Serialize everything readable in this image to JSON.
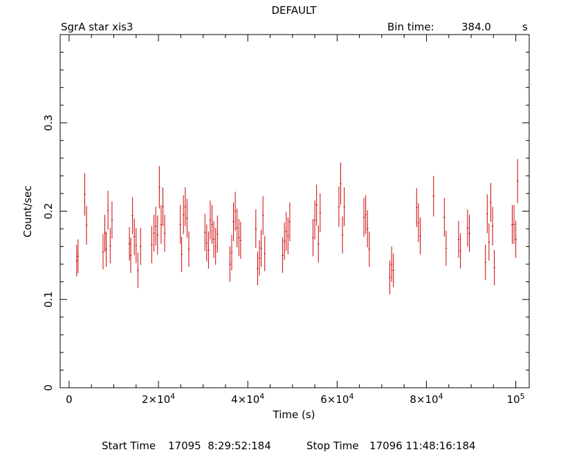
{
  "header": {
    "title": "DEFAULT",
    "source": "SgrA star xis3",
    "bin_label": "Bin time:",
    "bin_value": "384.0",
    "bin_unit": "s"
  },
  "footer": {
    "start_label": "Start Time",
    "start_value": "17095  8:29:52:184",
    "stop_label": "Stop Time",
    "stop_value": "17096 11:48:16:184"
  },
  "colors": {
    "data": "#cc0000",
    "axes": "#000000",
    "background": "#ffffff"
  },
  "chart_data": {
    "type": "scatter",
    "title": "DEFAULT",
    "xlabel": "Time (s)",
    "ylabel": "Count/sec",
    "xlim": [
      -2000,
      103000
    ],
    "ylim": [
      0,
      0.4
    ],
    "grid": false,
    "x_ticks": [
      {
        "value": 0,
        "mantissa": "0",
        "exp": ""
      },
      {
        "value": 20000,
        "mantissa": "2×10",
        "exp": "4"
      },
      {
        "value": 40000,
        "mantissa": "4×10",
        "exp": "4"
      },
      {
        "value": 60000,
        "mantissa": "6×10",
        "exp": "4"
      },
      {
        "value": 80000,
        "mantissa": "8×10",
        "exp": "4"
      },
      {
        "value": 100000,
        "mantissa": "10",
        "exp": "5"
      }
    ],
    "y_ticks": [
      {
        "value": 0,
        "label": "0"
      },
      {
        "value": 0.1,
        "label": "0.1"
      },
      {
        "value": 0.2,
        "label": "0.2"
      },
      {
        "value": 0.3,
        "label": "0.3"
      }
    ],
    "series": [
      {
        "x_error": 192,
        "points": [
          [
            1700,
            0.144,
            0.018
          ],
          [
            2000,
            0.149,
            0.019
          ],
          [
            3500,
            0.219,
            0.024
          ],
          [
            3900,
            0.184,
            0.022
          ],
          [
            7600,
            0.154,
            0.02
          ],
          [
            8000,
            0.175,
            0.021
          ],
          [
            8300,
            0.157,
            0.02
          ],
          [
            8700,
            0.201,
            0.022
          ],
          [
            9200,
            0.161,
            0.02
          ],
          [
            9600,
            0.19,
            0.021
          ],
          [
            13500,
            0.163,
            0.019
          ],
          [
            13800,
            0.15,
            0.02
          ],
          [
            14200,
            0.195,
            0.021
          ],
          [
            14600,
            0.171,
            0.021
          ],
          [
            15000,
            0.161,
            0.02
          ],
          [
            15400,
            0.133,
            0.02
          ],
          [
            16000,
            0.16,
            0.021
          ],
          [
            18500,
            0.162,
            0.021
          ],
          [
            19000,
            0.175,
            0.021
          ],
          [
            19400,
            0.183,
            0.022
          ],
          [
            19800,
            0.173,
            0.022
          ],
          [
            20200,
            0.227,
            0.024
          ],
          [
            20600,
            0.185,
            0.022
          ],
          [
            21000,
            0.205,
            0.022
          ],
          [
            21400,
            0.175,
            0.021
          ],
          [
            24900,
            0.185,
            0.022
          ],
          [
            25200,
            0.151,
            0.02
          ],
          [
            25600,
            0.196,
            0.022
          ],
          [
            26000,
            0.205,
            0.022
          ],
          [
            26400,
            0.192,
            0.022
          ],
          [
            26800,
            0.157,
            0.02
          ],
          [
            30400,
            0.176,
            0.021
          ],
          [
            30800,
            0.164,
            0.021
          ],
          [
            31200,
            0.156,
            0.021
          ],
          [
            31600,
            0.19,
            0.022
          ],
          [
            32000,
            0.185,
            0.022
          ],
          [
            32400,
            0.168,
            0.021
          ],
          [
            32800,
            0.16,
            0.021
          ],
          [
            33200,
            0.174,
            0.021
          ],
          [
            36000,
            0.14,
            0.02
          ],
          [
            36400,
            0.153,
            0.02
          ],
          [
            36800,
            0.188,
            0.022
          ],
          [
            37200,
            0.2,
            0.022
          ],
          [
            37600,
            0.181,
            0.022
          ],
          [
            38000,
            0.17,
            0.021
          ],
          [
            38400,
            0.167,
            0.021
          ],
          [
            41800,
            0.18,
            0.022
          ],
          [
            42200,
            0.135,
            0.019
          ],
          [
            42600,
            0.147,
            0.02
          ],
          [
            43000,
            0.158,
            0.021
          ],
          [
            43400,
            0.195,
            0.022
          ],
          [
            43800,
            0.152,
            0.02
          ],
          [
            47800,
            0.15,
            0.02
          ],
          [
            48200,
            0.166,
            0.021
          ],
          [
            48600,
            0.177,
            0.022
          ],
          [
            49000,
            0.172,
            0.021
          ],
          [
            49400,
            0.188,
            0.022
          ],
          [
            54600,
            0.17,
            0.021
          ],
          [
            55000,
            0.19,
            0.022
          ],
          [
            55400,
            0.207,
            0.023
          ],
          [
            55800,
            0.163,
            0.021
          ],
          [
            56200,
            0.198,
            0.022
          ],
          [
            60400,
            0.205,
            0.023
          ],
          [
            60800,
            0.231,
            0.024
          ],
          [
            61200,
            0.173,
            0.021
          ],
          [
            61600,
            0.205,
            0.022
          ],
          [
            66000,
            0.193,
            0.022
          ],
          [
            66400,
            0.196,
            0.022
          ],
          [
            66800,
            0.18,
            0.021
          ],
          [
            67200,
            0.157,
            0.02
          ],
          [
            71800,
            0.125,
            0.019
          ],
          [
            72200,
            0.14,
            0.02
          ],
          [
            72600,
            0.133,
            0.019
          ],
          [
            77800,
            0.204,
            0.022
          ],
          [
            78200,
            0.187,
            0.022
          ],
          [
            78600,
            0.172,
            0.021
          ],
          [
            81600,
            0.217,
            0.023
          ],
          [
            84000,
            0.193,
            0.022
          ],
          [
            84400,
            0.158,
            0.02
          ],
          [
            87200,
            0.168,
            0.021
          ],
          [
            87600,
            0.155,
            0.02
          ],
          [
            89200,
            0.181,
            0.021
          ],
          [
            89600,
            0.175,
            0.021
          ],
          [
            93200,
            0.142,
            0.02
          ],
          [
            93600,
            0.197,
            0.022
          ],
          [
            94000,
            0.165,
            0.021
          ],
          [
            94400,
            0.21,
            0.022
          ],
          [
            94800,
            0.183,
            0.022
          ],
          [
            95200,
            0.136,
            0.02
          ],
          [
            99200,
            0.185,
            0.022
          ],
          [
            99600,
            0.185,
            0.022
          ],
          [
            100000,
            0.168,
            0.021
          ],
          [
            100400,
            0.234,
            0.025
          ]
        ]
      }
    ]
  }
}
